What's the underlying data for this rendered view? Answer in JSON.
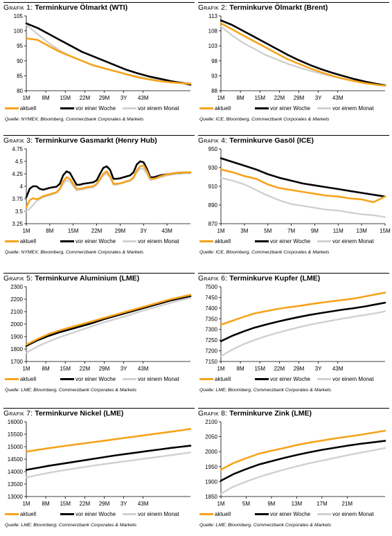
{
  "colors": {
    "aktuell": "#F5A31A",
    "woche": "#000000",
    "monat": "#D0D0D0"
  },
  "legend": {
    "aktuell": "aktuell",
    "woche": "vor einer Woche",
    "monat": "vor einem Monat"
  },
  "panels": [
    {
      "grafik": "Grafik 1:",
      "name": "Terminkurve Ölmarkt (WTI)",
      "source": "Quelle: NYMEX; Bloomberg, Commerzbank Corporates & Markets"
    },
    {
      "grafik": "Grafik 2:",
      "name": "Terminkurve Ölmarkt (Brent)",
      "source": "Quelle: ICE, Bloomberg, Commerzbank Corporates & Markets"
    },
    {
      "grafik": "Grafik 3:",
      "name": "Terminkurve Gasmarkt (Henry Hub)",
      "source": "Quelle: NYMEX; Bloomberg, Commerzbank Corporates & Markets"
    },
    {
      "grafik": "Grafik 4:",
      "name": "Terminkurve Gasöl (ICE)",
      "source": "Quelle: ICE, Bloomberg, Commerzbank Corporates & Markets"
    },
    {
      "grafik": "Grafik 5:",
      "name": "Terminkurve Aluminium (LME)",
      "source": "Quelle: LME; Bloomberg, Commerzbank Corporates & Markets"
    },
    {
      "grafik": "Grafik 6:",
      "name": "Terminkurve Kupfer (LME)",
      "source": "Quelle: LME; Bloomberg, Commerzbank Corporates & Markets"
    },
    {
      "grafik": "Grafik 7:",
      "name": "Terminkurve Nickel (LME)",
      "source": "Quelle: LME; Bloomberg, Commerzbank Corporates & Markets"
    },
    {
      "grafik": "Grafik 8:",
      "name": "Terminkurve Zink (LME)",
      "source": "Quelle: LME; Bloomberg, Commerzbank Corporates & Markets"
    }
  ],
  "chart_data": [
    {
      "type": "line",
      "title": "Terminkurve Ölmarkt (WTI)",
      "ylim": [
        80,
        105
      ],
      "yticks": [
        80,
        85,
        90,
        95,
        100,
        105
      ],
      "x": [
        1,
        5,
        9,
        13,
        17,
        21,
        25,
        29,
        33,
        37,
        41,
        45,
        49,
        53,
        57,
        60
      ],
      "xlim": [
        1,
        60
      ],
      "xtick_labels": [
        "1M",
        "8M",
        "15M",
        "22M",
        "29M",
        "3Y",
        "43M"
      ],
      "xtick_pos": [
        1,
        8,
        15,
        22,
        29,
        36,
        43
      ],
      "series": [
        {
          "key": "aktuell",
          "values": [
            97.5,
            97,
            95,
            93,
            91.5,
            90,
            88.5,
            87.5,
            86.5,
            85.5,
            84.5,
            83.8,
            83.2,
            82.8,
            82.5,
            82.3
          ]
        },
        {
          "key": "woche",
          "values": [
            102.5,
            101,
            99,
            97,
            95,
            93,
            91.5,
            90,
            88.5,
            87,
            85.8,
            84.8,
            84,
            83.2,
            82.6,
            82
          ]
        },
        {
          "key": "monat",
          "values": [
            102,
            99,
            96,
            93.5,
            91.5,
            90,
            88.5,
            87.5,
            86.5,
            85.5,
            84.8,
            84,
            83.5,
            83,
            82.8,
            82.6
          ]
        }
      ]
    },
    {
      "type": "line",
      "title": "Terminkurve Ölmarkt (Brent)",
      "ylim": [
        88,
        113
      ],
      "yticks": [
        88,
        93,
        98,
        103,
        108,
        113
      ],
      "x": [
        1,
        5,
        9,
        13,
        17,
        21,
        25,
        29,
        33,
        37,
        41,
        45,
        49,
        53,
        57,
        60
      ],
      "xlim": [
        1,
        60
      ],
      "xtick_labels": [
        "1M",
        "8M",
        "15M",
        "22M",
        "29M",
        "3Y",
        "43M"
      ],
      "xtick_pos": [
        1,
        8,
        15,
        22,
        29,
        36,
        43
      ],
      "series": [
        {
          "key": "aktuell",
          "values": [
            110.5,
            108.5,
            106.5,
            104.5,
            102.5,
            100.5,
            98.5,
            97,
            95.5,
            94.2,
            93,
            92,
            91.2,
            90.5,
            90,
            89.7
          ]
        },
        {
          "key": "woche",
          "values": [
            111.5,
            110,
            108,
            106,
            104,
            102,
            100,
            98.2,
            96.6,
            95.2,
            94,
            92.9,
            91.9,
            91,
            90.3,
            89.8
          ]
        },
        {
          "key": "monat",
          "values": [
            109.5,
            106.5,
            104,
            102,
            100,
            98.5,
            97,
            95.8,
            94.7,
            93.7,
            92.8,
            92,
            91.3,
            90.7,
            90.2,
            89.9
          ]
        }
      ]
    },
    {
      "type": "line",
      "title": "Terminkurve Gasmarkt (Henry Hub)",
      "ylim": [
        3.25,
        4.75
      ],
      "yticks": [
        3.25,
        3.5,
        3.75,
        4,
        4.25,
        4.5,
        4.75
      ],
      "x": [
        1,
        2,
        3,
        4,
        5,
        6,
        7,
        8,
        9,
        10,
        11,
        12,
        13,
        14,
        15,
        16,
        17,
        18,
        19,
        20,
        21,
        22,
        23,
        24,
        25,
        26,
        27,
        28,
        29,
        30,
        31,
        32,
        33,
        34,
        35,
        36,
        37,
        38,
        39,
        40,
        41,
        42,
        43,
        44,
        45,
        46,
        47,
        48,
        49,
        50
      ],
      "xlim": [
        1,
        50
      ],
      "xtick_labels": [
        "1M",
        "8M",
        "15M",
        "22M",
        "29M",
        "3Y",
        "43M"
      ],
      "xtick_pos": [
        1,
        8,
        15,
        22,
        29,
        36,
        43
      ],
      "series": [
        {
          "key": "aktuell",
          "values": [
            3.58,
            3.72,
            3.76,
            3.74,
            3.76,
            3.8,
            3.82,
            3.84,
            3.86,
            3.88,
            3.95,
            4.1,
            4.18,
            4.15,
            4.05,
            3.95,
            3.95,
            3.96,
            3.98,
            3.99,
            4,
            4.05,
            4.15,
            4.25,
            4.3,
            4.2,
            4.05,
            4.05,
            4.06,
            4.08,
            4.1,
            4.12,
            4.18,
            4.32,
            4.4,
            4.42,
            4.3,
            4.15,
            4.15,
            4.17,
            4.2,
            4.22,
            4.24,
            4.25,
            4.26,
            4.27,
            4.27,
            4.28,
            4.28,
            4.28
          ]
        },
        {
          "key": "woche",
          "values": [
            3.78,
            3.95,
            4,
            4,
            3.95,
            3.93,
            3.95,
            3.97,
            3.98,
            3.99,
            4.05,
            4.22,
            4.3,
            4.27,
            4.15,
            4.03,
            4.03,
            4.05,
            4.06,
            4.07,
            4.08,
            4.12,
            4.25,
            4.37,
            4.4,
            4.33,
            4.15,
            4.15,
            4.16,
            4.18,
            4.2,
            4.22,
            4.28,
            4.44,
            4.5,
            4.48,
            4.35,
            4.18,
            4.18,
            4.2,
            4.22,
            4.23,
            4.24,
            4.25,
            4.26,
            4.27,
            4.27,
            4.28,
            4.28,
            4.28
          ]
        },
        {
          "key": "monat",
          "values": [
            3.5,
            3.55,
            3.62,
            3.7,
            3.74,
            3.78,
            3.8,
            3.82,
            3.84,
            3.87,
            3.93,
            4.05,
            4.12,
            4.1,
            4,
            3.92,
            3.93,
            3.94,
            3.96,
            3.97,
            3.98,
            4.03,
            4.12,
            4.22,
            4.25,
            4.18,
            4.03,
            4.03,
            4.05,
            4.07,
            4.09,
            4.11,
            4.16,
            4.28,
            4.35,
            4.35,
            4.25,
            4.13,
            4.14,
            4.16,
            4.18,
            4.2,
            4.22,
            4.23,
            4.24,
            4.25,
            4.25,
            4.26,
            4.26,
            4.26
          ]
        }
      ]
    },
    {
      "type": "line",
      "title": "Terminkurve Gasöl (ICE)",
      "ylim": [
        870,
        950
      ],
      "yticks": [
        870,
        890,
        910,
        930,
        950
      ],
      "x": [
        1,
        2,
        3,
        4,
        5,
        6,
        7,
        8,
        9,
        10,
        11,
        12,
        13,
        14,
        15
      ],
      "xlim": [
        1,
        15
      ],
      "xtick_labels": [
        "1M",
        "3M",
        "5M",
        "7M",
        "9M",
        "11M",
        "13M",
        "15M"
      ],
      "xtick_pos": [
        1,
        3,
        5,
        7,
        9,
        11,
        13,
        15
      ],
      "series": [
        {
          "key": "aktuell",
          "values": [
            928,
            925,
            921,
            918,
            912,
            908,
            906,
            904,
            902,
            900,
            899,
            897,
            896,
            893,
            899
          ]
        },
        {
          "key": "woche",
          "values": [
            940,
            936,
            932,
            928,
            923,
            919,
            916,
            913,
            911,
            909,
            907,
            905,
            903,
            901,
            899
          ]
        },
        {
          "key": "monat",
          "values": [
            919,
            916,
            912,
            906,
            900,
            895,
            891,
            889,
            887,
            885,
            884,
            882,
            880,
            879,
            877
          ]
        }
      ]
    },
    {
      "type": "line",
      "title": "Terminkurve Aluminium (LME)",
      "ylim": [
        1700,
        2300
      ],
      "yticks": [
        1700,
        1800,
        1900,
        2000,
        2100,
        2200,
        2300
      ],
      "x": [
        1,
        5,
        9,
        13,
        17,
        21,
        25,
        29,
        33,
        37,
        41,
        45,
        49,
        53,
        57,
        60
      ],
      "xlim": [
        1,
        60
      ],
      "xtick_labels": [
        "1M",
        "8M",
        "15M",
        "22M",
        "29M",
        "3Y",
        "43M"
      ],
      "xtick_pos": [
        1,
        8,
        15,
        22,
        29,
        36,
        43
      ],
      "series": [
        {
          "key": "aktuell",
          "values": [
            1835,
            1880,
            1920,
            1950,
            1975,
            2000,
            2025,
            2050,
            2075,
            2100,
            2125,
            2150,
            2175,
            2200,
            2220,
            2235
          ]
        },
        {
          "key": "woche",
          "values": [
            1825,
            1870,
            1905,
            1935,
            1960,
            1985,
            2010,
            2040,
            2065,
            2090,
            2115,
            2140,
            2165,
            2190,
            2210,
            2225
          ]
        },
        {
          "key": "monat",
          "values": [
            1770,
            1820,
            1860,
            1895,
            1925,
            1955,
            1985,
            2015,
            2040,
            2065,
            2095,
            2120,
            2145,
            2170,
            2195,
            2210
          ]
        }
      ]
    },
    {
      "type": "line",
      "title": "Terminkurve Kupfer (LME)",
      "ylim": [
        7150,
        7500
      ],
      "yticks": [
        7150,
        7200,
        7250,
        7300,
        7350,
        7400,
        7450,
        7500
      ],
      "x": [
        1,
        5,
        9,
        13,
        17,
        21,
        25,
        29,
        33,
        37,
        41,
        45,
        49,
        53,
        57,
        60
      ],
      "xlim": [
        1,
        60
      ],
      "xtick_labels": [
        "1M",
        "8M",
        "15M",
        "22M",
        "29M",
        "3Y",
        "43M"
      ],
      "xtick_pos": [
        1,
        8,
        15,
        22,
        29,
        36,
        43
      ],
      "series": [
        {
          "key": "aktuell",
          "values": [
            7322,
            7340,
            7358,
            7375,
            7385,
            7395,
            7403,
            7410,
            7418,
            7425,
            7432,
            7438,
            7445,
            7455,
            7465,
            7472
          ]
        },
        {
          "key": "woche",
          "values": [
            7245,
            7270,
            7290,
            7308,
            7322,
            7335,
            7347,
            7358,
            7368,
            7377,
            7385,
            7393,
            7400,
            7408,
            7418,
            7425
          ]
        },
        {
          "key": "monat",
          "values": [
            7175,
            7205,
            7230,
            7250,
            7268,
            7283,
            7297,
            7310,
            7322,
            7332,
            7342,
            7351,
            7360,
            7368,
            7377,
            7385
          ]
        }
      ]
    },
    {
      "type": "line",
      "title": "Terminkurve Nickel (LME)",
      "ylim": [
        13000,
        16000
      ],
      "yticks": [
        13000,
        13500,
        14000,
        14500,
        15000,
        15500,
        16000
      ],
      "x": [
        1,
        5,
        9,
        13,
        17,
        21,
        25,
        29,
        33,
        37,
        41,
        45,
        49,
        53,
        57,
        60
      ],
      "xlim": [
        1,
        60
      ],
      "xtick_labels": [
        "1M",
        "8M",
        "15M",
        "22M",
        "29M",
        "3Y",
        "43M"
      ],
      "xtick_pos": [
        1,
        8,
        15,
        22,
        29,
        36,
        43
      ],
      "series": [
        {
          "key": "aktuell",
          "values": [
            14800,
            14870,
            14940,
            15000,
            15060,
            15120,
            15180,
            15240,
            15300,
            15360,
            15420,
            15480,
            15540,
            15600,
            15660,
            15710
          ]
        },
        {
          "key": "woche",
          "values": [
            14070,
            14150,
            14230,
            14300,
            14370,
            14440,
            14510,
            14580,
            14650,
            14710,
            14770,
            14830,
            14890,
            14950,
            15000,
            15040
          ]
        },
        {
          "key": "monat",
          "values": [
            13760,
            13860,
            13950,
            14030,
            14100,
            14170,
            14240,
            14300,
            14360,
            14420,
            14480,
            14540,
            14600,
            14660,
            14720,
            14770
          ]
        }
      ]
    },
    {
      "type": "line",
      "title": "Terminkurve Zink (LME)",
      "ylim": [
        1850,
        2100
      ],
      "yticks": [
        1850,
        1900,
        1950,
        2000,
        2050,
        2100
      ],
      "x": [
        1,
        3,
        5,
        7,
        9,
        11,
        13,
        15,
        17,
        19,
        21,
        23,
        25,
        27
      ],
      "xlim": [
        1,
        27
      ],
      "xtick_labels": [
        "1M",
        "5M",
        "9M",
        "13M",
        "17M",
        "21M"
      ],
      "xtick_pos": [
        1,
        5,
        9,
        13,
        17,
        21
      ],
      "series": [
        {
          "key": "aktuell",
          "values": [
            1940,
            1962,
            1978,
            1993,
            2003,
            2012,
            2022,
            2030,
            2037,
            2044,
            2050,
            2056,
            2063,
            2070
          ]
        },
        {
          "key": "woche",
          "values": [
            1903,
            1925,
            1942,
            1957,
            1968,
            1979,
            1989,
            1998,
            2006,
            2013,
            2020,
            2026,
            2031,
            2036
          ]
        },
        {
          "key": "monat",
          "values": [
            1860,
            1883,
            1900,
            1915,
            1928,
            1940,
            1951,
            1961,
            1970,
            1979,
            1988,
            1996,
            2004,
            2012
          ]
        }
      ]
    }
  ]
}
